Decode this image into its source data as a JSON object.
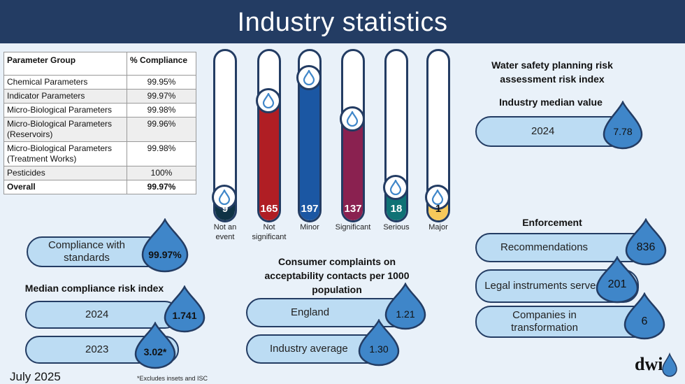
{
  "title": "Industry statistics",
  "footer": {
    "date": "July 2025",
    "note": "*Excludes insets and ISC",
    "logo": "dwi"
  },
  "compliance_table": {
    "headers": [
      "Parameter Group",
      "% Compliance"
    ],
    "rows": [
      [
        "Chemical Parameters",
        "99.95%"
      ],
      [
        "Indicator Parameters",
        "99.97%"
      ],
      [
        "Micro-Biological Parameters",
        "99.98%"
      ],
      [
        "Micro-Biological Parameters (Reservoirs)",
        "99.96%"
      ],
      [
        "Micro-Biological Parameters (Treatment Works)",
        "99.98%"
      ],
      [
        "Pesticides",
        "100%"
      ],
      [
        "Overall",
        "99.97%"
      ]
    ]
  },
  "event_tubes": [
    {
      "label": "Not an event",
      "count": "9",
      "level": 0.02,
      "color": "#0f3345"
    },
    {
      "label": "Not significant",
      "count": "165",
      "level": 0.78,
      "color": "#b01e24"
    },
    {
      "label": "Minor",
      "count": "197",
      "level": 0.96,
      "color": "#1b57a3"
    },
    {
      "label": "Significant",
      "count": "137",
      "level": 0.64,
      "color": "#8a2150"
    },
    {
      "label": "Serious",
      "count": "18",
      "level": 0.1,
      "color": "#0f7275"
    },
    {
      "label": "Major",
      "count": "1",
      "level": 0.02,
      "color": "#f7c95a"
    }
  ],
  "compliance_standards": {
    "label": "Compliance with standards",
    "value": "99.97%"
  },
  "median_risk": {
    "heading": "Median compliance risk index",
    "rows": [
      {
        "year": "2024",
        "value": "1.741"
      },
      {
        "year": "2023",
        "value": "3.02*"
      }
    ]
  },
  "complaints": {
    "heading": "Consumer complaints on acceptability contacts per 1000 population",
    "rows": [
      {
        "label": "England",
        "value": "1.21"
      },
      {
        "label": "Industry average",
        "value": "1.30"
      }
    ]
  },
  "wsp": {
    "heading": "Water safety planning risk assessment risk index",
    "subheading": "Industry median value",
    "year": "2024",
    "value": "7.78"
  },
  "enforcement": {
    "heading": "Enforcement",
    "rows": [
      {
        "label": "Recommendations",
        "value": "836"
      },
      {
        "label": "Legal instruments served",
        "value": "201"
      },
      {
        "label": "Companies in transformation",
        "value": "6"
      }
    ]
  },
  "colors": {
    "navy": "#233c63",
    "drop": "#3f86c9",
    "pill": "#bcdcf3"
  }
}
